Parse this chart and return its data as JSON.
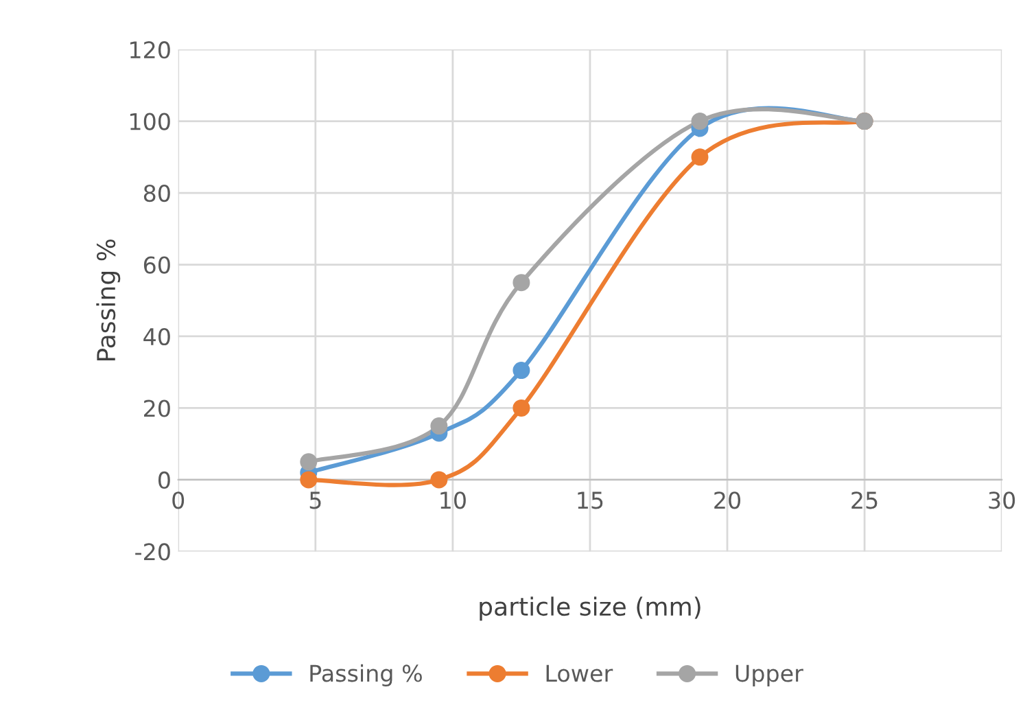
{
  "chart_data": {
    "type": "line",
    "xlabel": "particle size (mm)",
    "ylabel": "Passing %",
    "x": [
      4.75,
      9.5,
      12.5,
      19,
      25
    ],
    "series": [
      {
        "name": "Passing %",
        "color": "#5b9bd5",
        "values": [
          2,
          13,
          30.5,
          98,
          100
        ]
      },
      {
        "name": "Lower",
        "color": "#ed7d31",
        "values": [
          0,
          0,
          20,
          90,
          100
        ]
      },
      {
        "name": "Upper",
        "color": "#a5a5a5",
        "values": [
          5,
          15,
          55,
          100,
          100
        ]
      }
    ],
    "xlim": [
      0,
      30
    ],
    "xticks": [
      0,
      5,
      10,
      15,
      20,
      25,
      30
    ],
    "ylim": [
      -20,
      120
    ],
    "yticks": [
      -20,
      0,
      20,
      40,
      60,
      80,
      100,
      120
    ],
    "grid": true,
    "legend": "bottom",
    "marker": "circle",
    "line_style": "solid"
  }
}
